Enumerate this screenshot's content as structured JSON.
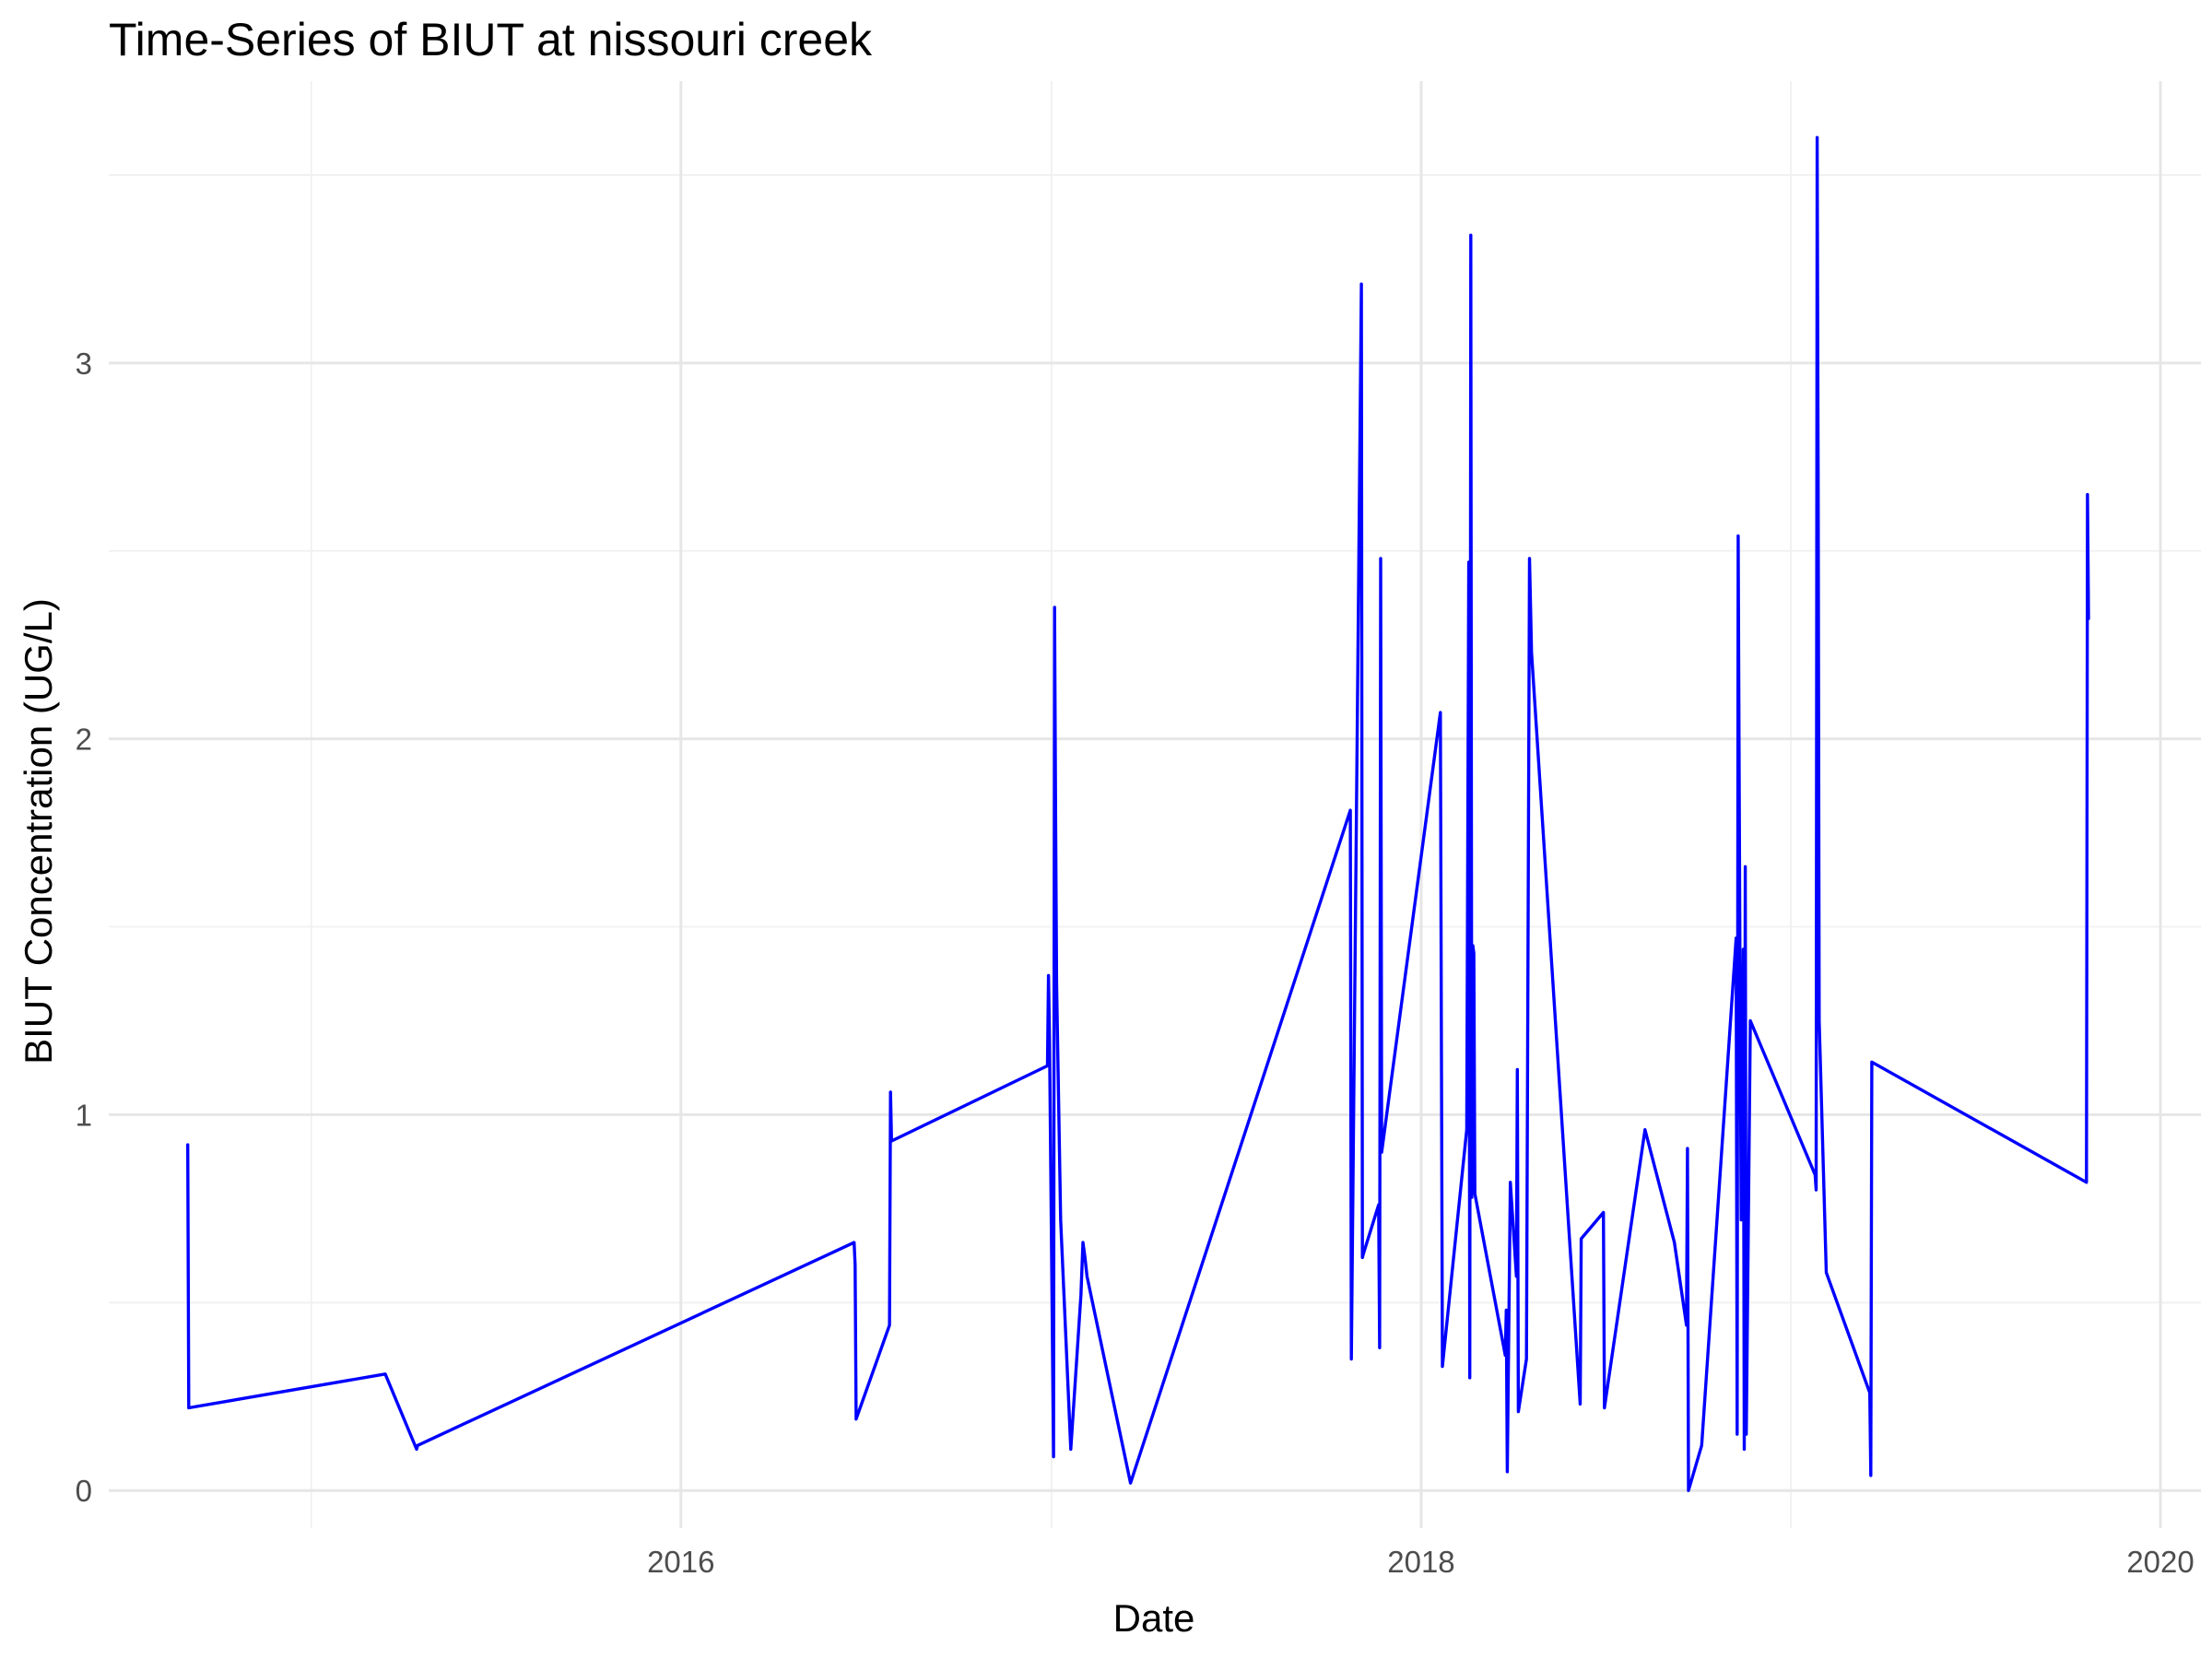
{
  "chart_data": {
    "type": "line",
    "title": "Time-Series of BIUT at nissouri creek",
    "xlabel": "Date",
    "ylabel": "BIUT Concentration (UG/L)",
    "x_ticks": [
      "2016-01-01",
      "2018-01-01",
      "2020-01-01"
    ],
    "x_tick_labels": [
      "2016",
      "2018",
      "2020"
    ],
    "x_minor_ticks": [
      "2015-01-01",
      "2017-01-01",
      "2019-01-01"
    ],
    "xlim": [
      "2014-06-15",
      "2020-02-10"
    ],
    "y_ticks": [
      0,
      1,
      2,
      3
    ],
    "y_tick_labels": [
      "0",
      "1",
      "2",
      "3"
    ],
    "y_minor_ticks": [
      0.5,
      1.5,
      2.5,
      3.5
    ],
    "ylim": [
      -0.1,
      3.75
    ],
    "grid": true,
    "legend": "none",
    "color": "#0000ff",
    "series": [
      {
        "x": [
          "2014-09-01",
          "2014-09-02",
          "2015-03-15",
          "2015-04-15",
          "2015-04-16",
          "2016-06-20",
          "2016-06-21",
          "2016-06-22",
          "2016-07-25",
          "2016-07-26",
          "2016-07-27",
          "2016-12-28",
          "2016-12-29",
          "2016-12-30",
          "2017-01-03",
          "2017-01-04",
          "2017-01-05",
          "2017-01-06",
          "2017-01-10",
          "2017-01-20",
          "2017-01-30",
          "2017-02-01",
          "2017-02-03",
          "2017-02-05",
          "2017-03-20",
          "2017-10-23",
          "2017-10-24",
          "2017-11-03",
          "2017-11-04",
          "2017-11-05",
          "2017-11-20",
          "2017-11-21",
          "2017-11-22",
          "2017-11-23",
          "2018-01-20",
          "2018-01-22",
          "2018-02-15",
          "2018-02-17",
          "2018-02-18",
          "2018-02-19",
          "2018-02-20",
          "2018-02-21",
          "2018-02-22",
          "2018-02-23",
          "2018-03-25",
          "2018-03-26",
          "2018-03-27",
          "2018-03-30",
          "2018-04-05",
          "2018-04-06",
          "2018-04-07",
          "2018-04-15",
          "2018-04-18",
          "2018-04-20",
          "2018-06-07",
          "2018-06-08",
          "2018-06-30",
          "2018-07-01",
          "2018-08-10",
          "2018-09-08",
          "2018-09-20",
          "2018-09-21",
          "2018-09-22",
          "2018-10-05",
          "2018-11-08",
          "2018-11-09",
          "2018-11-10",
          "2018-11-12",
          "2018-11-13",
          "2018-11-15",
          "2018-11-16",
          "2018-11-17",
          "2018-11-18",
          "2018-11-22",
          "2019-01-25",
          "2019-01-26",
          "2019-01-27",
          "2019-01-28",
          "2019-01-29",
          "2019-02-05",
          "2019-03-20",
          "2019-03-21",
          "2019-03-22",
          "2019-10-20",
          "2019-10-21",
          "2019-10-22"
        ],
        "y": [
          0.92,
          0.22,
          0.31,
          0.11,
          0.12,
          0.66,
          0.6,
          0.19,
          0.44,
          1.06,
          0.93,
          1.13,
          1.37,
          1.2,
          0.09,
          2.35,
          1.81,
          1.35,
          0.72,
          0.11,
          0.52,
          0.66,
          0.62,
          0.57,
          0.02,
          1.81,
          0.35,
          3.21,
          0.62,
          0.63,
          0.76,
          0.38,
          2.48,
          0.9,
          2.07,
          0.33,
          0.96,
          2.47,
          0.3,
          3.34,
          0.78,
          1.45,
          1.43,
          0.79,
          0.36,
          0.48,
          0.05,
          0.82,
          0.57,
          1.12,
          0.21,
          0.35,
          2.48,
          2.23,
          0.23,
          0.67,
          0.74,
          0.22,
          0.96,
          0.66,
          0.44,
          0.91,
          0.0,
          0.12,
          1.47,
          0.15,
          2.54,
          1.25,
          0.72,
          1.44,
          0.11,
          1.66,
          0.15,
          1.25,
          0.84,
          0.8,
          3.6,
          2.67,
          1.25,
          0.58,
          0.26,
          0.04,
          1.14,
          0.82,
          2.65,
          2.32
        ]
      }
    ]
  }
}
